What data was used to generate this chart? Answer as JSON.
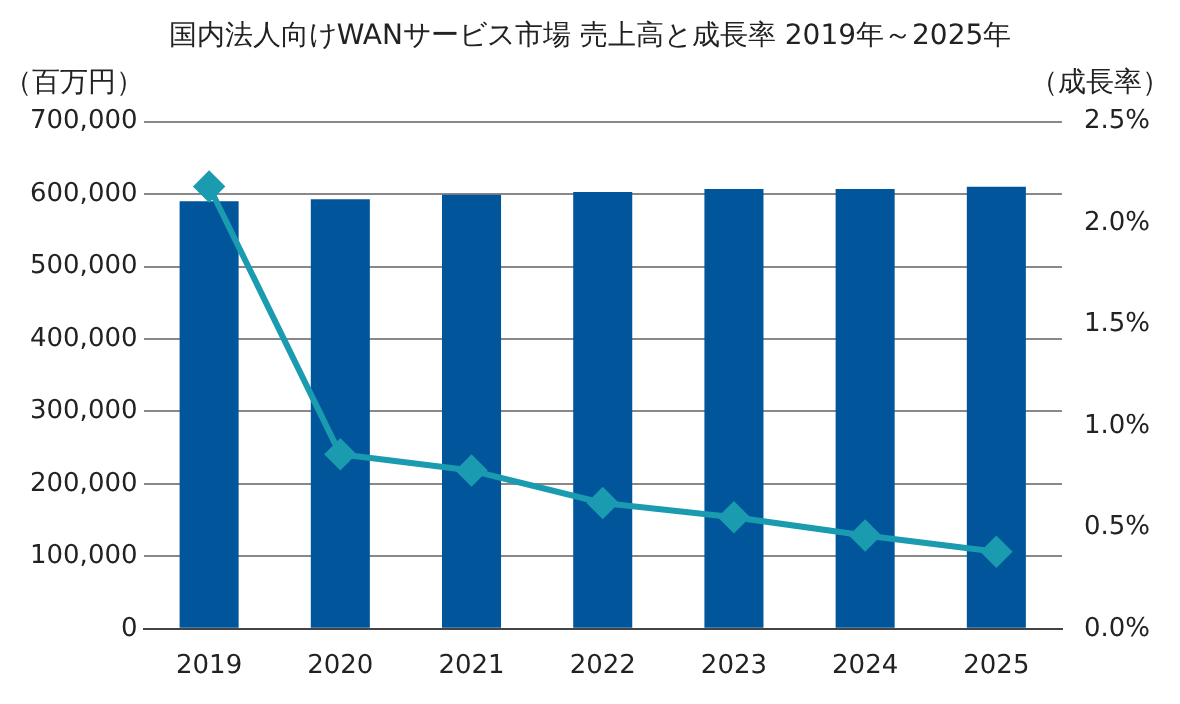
{
  "chart_data": {
    "type": "bar",
    "title": "国内法人向けWANサービス市場 売上高と成長率 2019年～2025年",
    "ylabel": "（百万円）",
    "y2label": "（成長率）",
    "categories": [
      "2019",
      "2020",
      "2021",
      "2022",
      "2023",
      "2024",
      "2025"
    ],
    "series": [
      {
        "color": "#00559b",
        "values": [
          590000,
          593000,
          599000,
          603000,
          607000,
          607000,
          610000
        ]
      },
      {
        "type": "line",
        "axis": "y2",
        "color": "#1a9bb0",
        "marker": "diamond",
        "values": [
          2.18,
          0.86,
          0.78,
          0.62,
          0.55,
          0.46,
          0.38
        ]
      }
    ],
    "ylim": [
      0,
      700000
    ],
    "yticks": [
      0,
      {
        "value": 100000,
        "label": "100,000"
      },
      {
        "value": 200000,
        "label": "200,000"
      },
      {
        "value": 300000,
        "label": "300,000"
      },
      {
        "value": 400000,
        "label": "400,000"
      },
      {
        "value": 500000,
        "label": "500,000"
      },
      {
        "value": 600000,
        "label": "600,000"
      },
      {
        "value": 700000,
        "label": "700,000"
      }
    ],
    "y2lim": [
      0,
      2.5
    ],
    "y2ticks": [
      {
        "value": 0,
        "label": "0.0%"
      },
      {
        "value": 0.5,
        "label": "0.5%"
      },
      {
        "value": 1,
        "label": "1.0%"
      },
      {
        "value": 1.5,
        "label": "1.5%"
      },
      {
        "value": 2,
        "label": "2.0%"
      },
      {
        "value": 2.5,
        "label": "2.5%"
      }
    ],
    "grid": "y",
    "legend": false
  }
}
